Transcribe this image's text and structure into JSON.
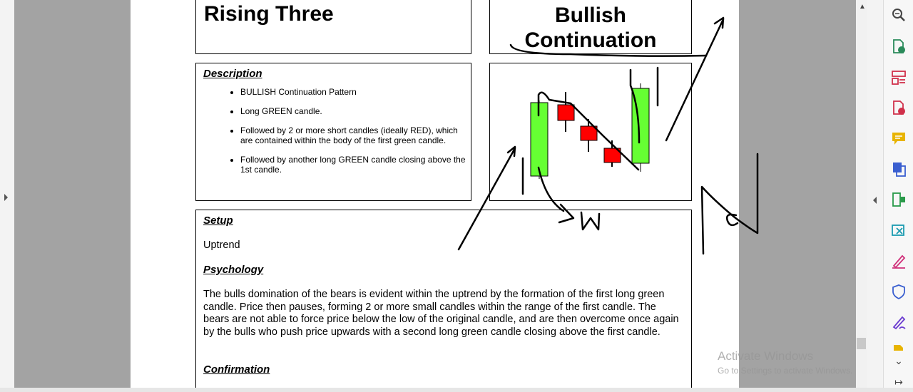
{
  "document": {
    "pattern_title": "Rising Three",
    "signal_title_line1": "Bullish",
    "signal_title_line2": "Continuation",
    "description": {
      "heading": "Description",
      "bullets": [
        "BULLISH Continuation Pattern",
        "Long GREEN candle.",
        "Followed by 2 or more short candles (ideally RED), which are contained within the body of the first green candle.",
        "Followed by another long GREEN candle closing above the 1st candle."
      ]
    },
    "setup": {
      "heading": "Setup",
      "text": "Uptrend"
    },
    "psychology": {
      "heading": "Psychology",
      "text": "The bulls domination of the bears is evident within the uptrend by the formation of the first long green candle. Price then pauses, forming 2 or more small candles within the range of the first candle. The bears are not able to force price below the low of the original candle, and are then overcome once again by the bulls who push price upwards with a second long green candle closing above the first candle."
    },
    "confirmation": {
      "heading": "Confirmation"
    }
  },
  "candles": {
    "bullish_color": "#66ff33",
    "bearish_color": "#ff0000",
    "items": [
      {
        "color": "green",
        "role": "first long candle"
      },
      {
        "color": "red",
        "role": "small candle 1"
      },
      {
        "color": "red",
        "role": "small candle 2"
      },
      {
        "color": "red",
        "role": "small candle 3"
      },
      {
        "color": "green",
        "role": "second long candle"
      }
    ]
  },
  "annotations": {
    "handwritten_letter": "W"
  },
  "watermark": {
    "line1": "Activate Windows",
    "line2": "Go to Settings to activate Windows."
  },
  "toolbar": {
    "icons": [
      {
        "name": "zoom-icon",
        "color": "#444444"
      },
      {
        "name": "export-pdf-icon",
        "color": "#2a8a5a"
      },
      {
        "name": "organize-pages-icon",
        "color": "#d0304a"
      },
      {
        "name": "create-pdf-icon",
        "color": "#d0304a"
      },
      {
        "name": "comment-icon",
        "color": "#e8b400"
      },
      {
        "name": "combine-files-icon",
        "color": "#3a5fd0"
      },
      {
        "name": "compress-icon",
        "color": "#2a9a4a"
      },
      {
        "name": "edit-pdf-icon",
        "color": "#1a9ab0"
      },
      {
        "name": "fill-sign-icon",
        "color": "#d0307a"
      },
      {
        "name": "protect-icon",
        "color": "#3a5fd0"
      },
      {
        "name": "request-signature-icon",
        "color": "#6a3ad0"
      },
      {
        "name": "more-tools-icon",
        "color": "#e8b400"
      }
    ]
  }
}
